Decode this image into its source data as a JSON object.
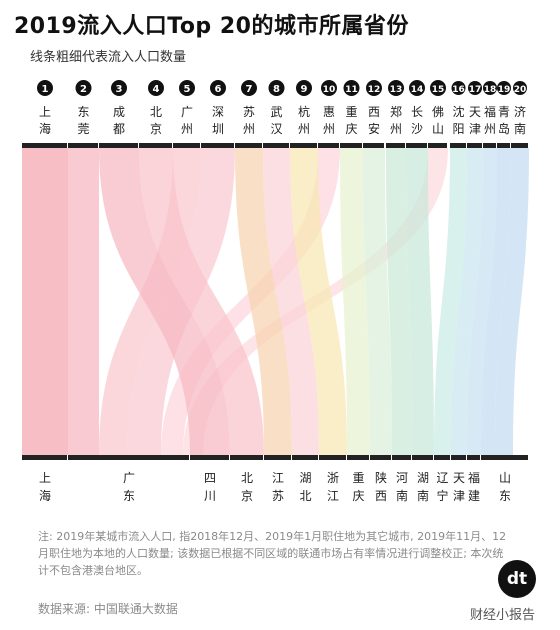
{
  "title": "2019流入人口Top 20的城市所属省份",
  "subtitle": "线条粗细代表流入人口数量",
  "note": "注: 2019年某城市流入人口, 指2018年12月、2019年1月职住地为其它城市, 2019年11月、12月职住地为本地的人口数量; 该数据已根据不同区域的联通市场占有率情况进行调整校正; 本次统计不包含港澳台地区。",
  "source": "数据来源: 中国联通大数据",
  "logo_text": "dt",
  "watermark": "财经小报告",
  "chart_data": {
    "type": "sankey",
    "title": "2019流入人口Top 20的城市所属省份",
    "subtitle": "线条粗细代表流入人口数量",
    "cities": [
      {
        "rank": 1,
        "name": "上海",
        "province": "上海",
        "color": "#f4a5ae"
      },
      {
        "rank": 2,
        "name": "东莞",
        "province": "广东",
        "color": "#f7b6bf"
      },
      {
        "rank": 3,
        "name": "成都",
        "province": "四川",
        "color": "#f7b8c2"
      },
      {
        "rank": 4,
        "name": "北京",
        "province": "北京",
        "color": "#f9c4cc"
      },
      {
        "rank": 5,
        "name": "广州",
        "province": "广东",
        "color": "#f9c6cd"
      },
      {
        "rank": 6,
        "name": "深圳",
        "province": "广东",
        "color": "#fac9d0"
      },
      {
        "rank": 7,
        "name": "苏州",
        "province": "江苏",
        "color": "#f6d3b0"
      },
      {
        "rank": 8,
        "name": "武汉",
        "province": "湖北",
        "color": "#fbd3d8"
      },
      {
        "rank": 9,
        "name": "杭州",
        "province": "浙江",
        "color": "#f7e7b3"
      },
      {
        "rank": 10,
        "name": "惠州",
        "province": "广东",
        "color": "#fcd6dc"
      },
      {
        "rank": 11,
        "name": "重庆",
        "province": "重庆",
        "color": "#e6f2cf"
      },
      {
        "rank": 12,
        "name": "西安",
        "province": "陕西",
        "color": "#d9efd9"
      },
      {
        "rank": 13,
        "name": "郑州",
        "province": "河南",
        "color": "#cbe9d5"
      },
      {
        "rank": 14,
        "name": "长沙",
        "province": "湖南",
        "color": "#c8e8db"
      },
      {
        "rank": 15,
        "name": "佛山",
        "province": "广东",
        "color": "#fcd9de"
      },
      {
        "rank": 16,
        "name": "沈阳",
        "province": "辽宁",
        "color": "#c9ebe6"
      },
      {
        "rank": 17,
        "name": "天津",
        "province": "天津",
        "color": "#c9e6ee"
      },
      {
        "rank": 18,
        "name": "福州",
        "province": "福建",
        "color": "#c6e1f0"
      },
      {
        "rank": 19,
        "name": "青岛",
        "province": "山东",
        "color": "#c3dcf1"
      },
      {
        "rank": 20,
        "name": "济南",
        "province": "山东",
        "color": "#c3dbf2"
      }
    ],
    "provinces": [
      "上海",
      "广东",
      "四川",
      "北京",
      "江苏",
      "湖北",
      "浙江",
      "重庆",
      "陕西",
      "河南",
      "湖南",
      "辽宁",
      "天津",
      "福建",
      "山东"
    ]
  }
}
